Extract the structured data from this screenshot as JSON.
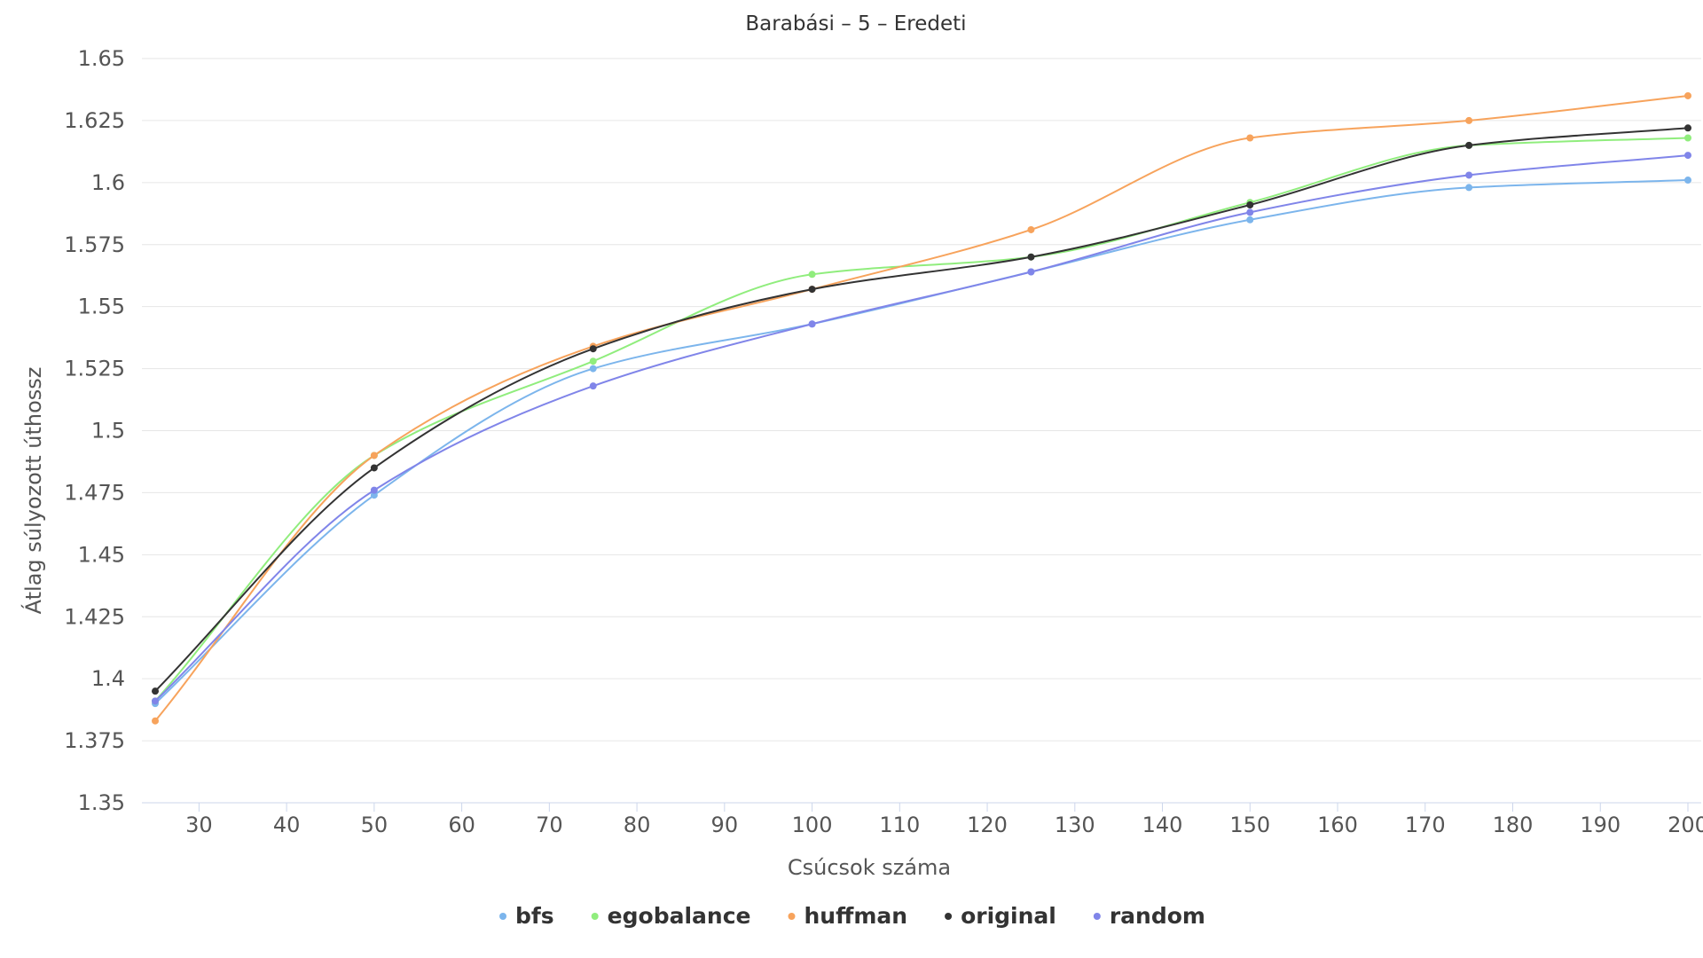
{
  "chart_data": {
    "type": "line",
    "title": "Barabási – 5 – Eredeti",
    "xlabel": "Csúcsok száma",
    "ylabel": "Átlag súlyozott úthossz",
    "xlim": [
      25,
      200
    ],
    "ylim": [
      1.35,
      1.65
    ],
    "x_ticks": [
      "30",
      "40",
      "50",
      "60",
      "70",
      "80",
      "90",
      "100",
      "110",
      "120",
      "130",
      "140",
      "150",
      "160",
      "170",
      "180",
      "190",
      "200"
    ],
    "y_ticks": [
      "1.35",
      "1.375",
      "1.4",
      "1.425",
      "1.45",
      "1.475",
      "1.5",
      "1.525",
      "1.55",
      "1.575",
      "1.6",
      "1.625",
      "1.65"
    ],
    "grid": "horizontal",
    "legend_position": "bottom-center",
    "x": [
      25,
      50,
      75,
      100,
      125,
      150,
      175,
      200
    ],
    "series": [
      {
        "name": "bfs",
        "color": "#7cb5ec",
        "values": [
          1.39,
          1.474,
          1.525,
          1.543,
          1.564,
          1.585,
          1.598,
          1.601
        ]
      },
      {
        "name": "egobalance",
        "color": "#90ed7d",
        "values": [
          1.391,
          1.49,
          1.528,
          1.563,
          1.57,
          1.592,
          1.615,
          1.618
        ]
      },
      {
        "name": "huffman",
        "color": "#f7a35c",
        "values": [
          1.383,
          1.49,
          1.534,
          1.557,
          1.581,
          1.618,
          1.625,
          1.635
        ]
      },
      {
        "name": "original",
        "color": "#333333",
        "values": [
          1.395,
          1.485,
          1.533,
          1.557,
          1.57,
          1.591,
          1.615,
          1.622
        ]
      },
      {
        "name": "random",
        "color": "#8085e9",
        "values": [
          1.391,
          1.476,
          1.518,
          1.543,
          1.564,
          1.588,
          1.603,
          1.611
        ]
      }
    ]
  }
}
